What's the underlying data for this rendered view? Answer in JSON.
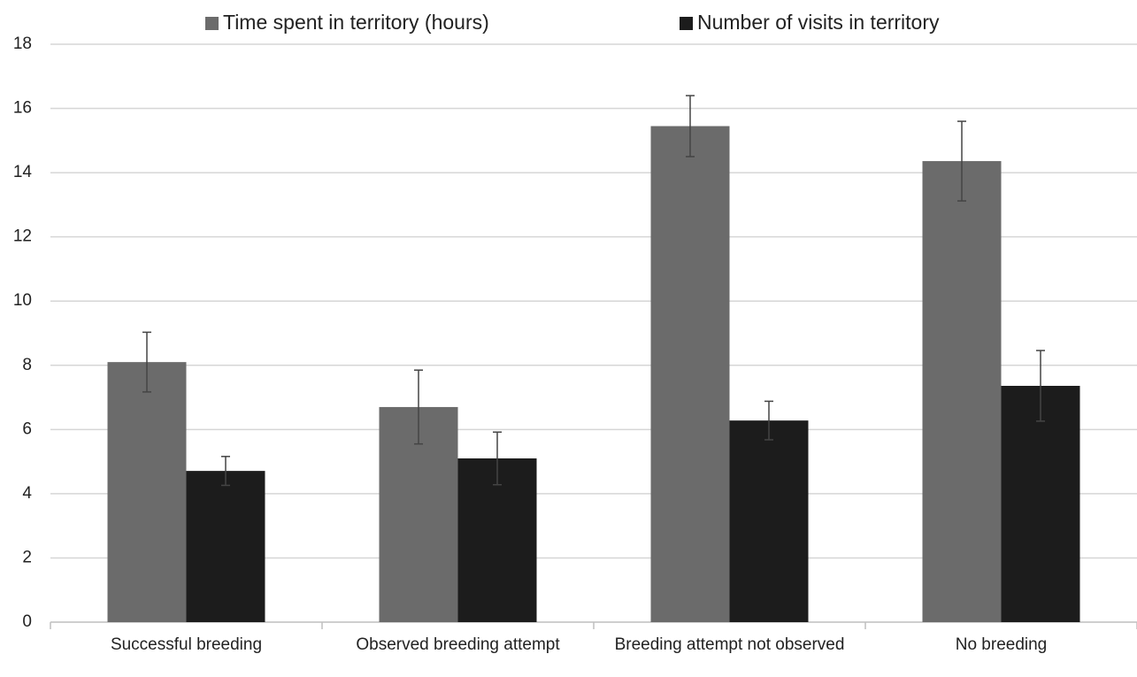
{
  "chart_data": {
    "type": "bar",
    "categories": [
      "Successful breeding",
      "Observed breeding attempt",
      "Breeding attempt not observed",
      "No breeding"
    ],
    "series": [
      {
        "name": "Time spent in territory (hours)",
        "color": "#6b6b6b",
        "values": [
          8.1,
          6.7,
          15.45,
          14.36
        ],
        "errors": [
          0.93,
          1.15,
          0.95,
          1.24
        ]
      },
      {
        "name": "Number of visits in territory",
        "color": "#1c1c1c",
        "values": [
          4.71,
          5.1,
          6.28,
          7.36
        ],
        "errors": [
          0.45,
          0.82,
          0.6,
          1.1
        ]
      }
    ],
    "ylim": [
      0,
      18
    ],
    "yticks": [
      0,
      2,
      4,
      6,
      8,
      10,
      12,
      14,
      16,
      18
    ],
    "grid": true,
    "legend": "top"
  }
}
